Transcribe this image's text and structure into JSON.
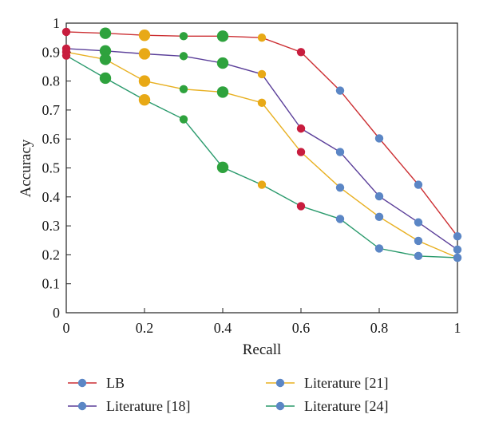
{
  "chart_data": {
    "type": "line",
    "xlabel": "Recall",
    "ylabel": "Accuracy",
    "xlim": [
      0,
      1
    ],
    "ylim": [
      0,
      1
    ],
    "x_ticks": [
      0,
      0.2,
      0.4,
      0.6,
      0.8,
      1
    ],
    "x_tick_labels": [
      "0",
      "0.2",
      "0.4",
      "0.6",
      "0.8",
      "1"
    ],
    "y_ticks": [
      0,
      0.1,
      0.2,
      0.3,
      0.4,
      0.5,
      0.6,
      0.7,
      0.8,
      0.9,
      1
    ],
    "y_tick_labels": [
      "0",
      "0.1",
      "0.2",
      "0.3",
      "0.4",
      "0.5",
      "0.6",
      "0.7",
      "0.8",
      "0.9",
      "1"
    ],
    "grid": false,
    "legend_position": "bottom",
    "legend_marker_color": "#5b86c5",
    "series": [
      {
        "name": "LB",
        "color": "#cc2f33",
        "points": [
          {
            "x": 0,
            "y": 0.97,
            "marker_color": "#c81d3e"
          },
          {
            "x": 0.1,
            "y": 0.965,
            "marker_color": "#2ea23d"
          },
          {
            "x": 0.2,
            "y": 0.958,
            "marker_color": "#e8a916"
          },
          {
            "x": 0.3,
            "y": 0.955,
            "marker_color": "#2ea23d"
          },
          {
            "x": 0.4,
            "y": 0.955,
            "marker_color": "#2ea23d"
          },
          {
            "x": 0.5,
            "y": 0.95,
            "marker_color": "#e8a916"
          },
          {
            "x": 0.6,
            "y": 0.9,
            "marker_color": "#c81d3e"
          },
          {
            "x": 0.7,
            "y": 0.767,
            "marker_color": "#5b86c5"
          },
          {
            "x": 0.8,
            "y": 0.602,
            "marker_color": "#5b86c5"
          },
          {
            "x": 0.9,
            "y": 0.442,
            "marker_color": "#5b86c5"
          },
          {
            "x": 1,
            "y": 0.264,
            "marker_color": "#5b86c5"
          }
        ]
      },
      {
        "name": "Literature [18]",
        "color": "#5a3e99",
        "points": [
          {
            "x": 0,
            "y": 0.912,
            "marker_color": "#c81d3e"
          },
          {
            "x": 0.1,
            "y": 0.904,
            "marker_color": "#2ea23d"
          },
          {
            "x": 0.2,
            "y": 0.894,
            "marker_color": "#e8a916"
          },
          {
            "x": 0.3,
            "y": 0.886,
            "marker_color": "#2ea23d"
          },
          {
            "x": 0.4,
            "y": 0.862,
            "marker_color": "#2ea23d"
          },
          {
            "x": 0.5,
            "y": 0.824,
            "marker_color": "#e8a916"
          },
          {
            "x": 0.6,
            "y": 0.636,
            "marker_color": "#c81d3e"
          },
          {
            "x": 0.7,
            "y": 0.555,
            "marker_color": "#5b86c5"
          },
          {
            "x": 0.8,
            "y": 0.402,
            "marker_color": "#5b86c5"
          },
          {
            "x": 0.9,
            "y": 0.312,
            "marker_color": "#5b86c5"
          },
          {
            "x": 1,
            "y": 0.218,
            "marker_color": "#5b86c5"
          }
        ]
      },
      {
        "name": "Literature [21]",
        "color": "#e8b021",
        "points": [
          {
            "x": 0,
            "y": 0.9,
            "marker_color": "#c81d3e"
          },
          {
            "x": 0.1,
            "y": 0.875,
            "marker_color": "#2ea23d"
          },
          {
            "x": 0.2,
            "y": 0.8,
            "marker_color": "#e8a916"
          },
          {
            "x": 0.3,
            "y": 0.772,
            "marker_color": "#2ea23d"
          },
          {
            "x": 0.4,
            "y": 0.762,
            "marker_color": "#2ea23d"
          },
          {
            "x": 0.5,
            "y": 0.725,
            "marker_color": "#e8a916"
          },
          {
            "x": 0.6,
            "y": 0.555,
            "marker_color": "#c81d3e"
          },
          {
            "x": 0.7,
            "y": 0.432,
            "marker_color": "#5b86c5"
          },
          {
            "x": 0.8,
            "y": 0.331,
            "marker_color": "#5b86c5"
          },
          {
            "x": 0.9,
            "y": 0.248,
            "marker_color": "#5b86c5"
          },
          {
            "x": 1,
            "y": 0.19,
            "marker_color": "#5b86c5"
          }
        ]
      },
      {
        "name": "Literature [24]",
        "color": "#2a9a6c",
        "points": [
          {
            "x": 0,
            "y": 0.888,
            "marker_color": "#c81d3e"
          },
          {
            "x": 0.1,
            "y": 0.81,
            "marker_color": "#2ea23d"
          },
          {
            "x": 0.2,
            "y": 0.735,
            "marker_color": "#e8a916"
          },
          {
            "x": 0.3,
            "y": 0.668,
            "marker_color": "#2ea23d"
          },
          {
            "x": 0.4,
            "y": 0.502,
            "marker_color": "#2ea23d"
          },
          {
            "x": 0.5,
            "y": 0.442,
            "marker_color": "#e8a916"
          },
          {
            "x": 0.6,
            "y": 0.368,
            "marker_color": "#c81d3e"
          },
          {
            "x": 0.7,
            "y": 0.324,
            "marker_color": "#5b86c5"
          },
          {
            "x": 0.8,
            "y": 0.222,
            "marker_color": "#5b86c5"
          },
          {
            "x": 0.9,
            "y": 0.196,
            "marker_color": "#5b86c5"
          },
          {
            "x": 1,
            "y": 0.19,
            "marker_color": "#5b86c5"
          }
        ]
      }
    ]
  }
}
